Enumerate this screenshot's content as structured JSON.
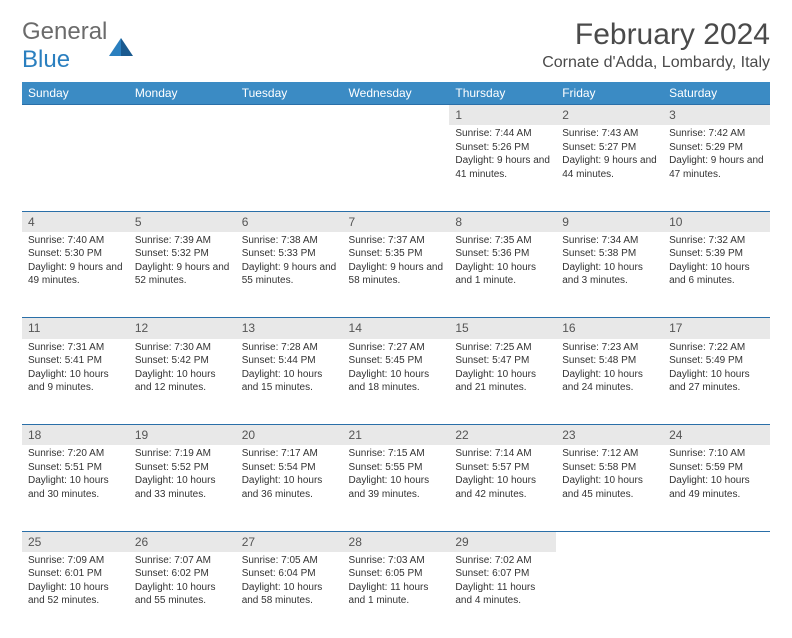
{
  "logo": {
    "word1": "General",
    "word2": "Blue"
  },
  "title": "February 2024",
  "location": "Cornate d'Adda, Lombardy, Italy",
  "colors": {
    "header_bg": "#3b8bc4",
    "header_text": "#ffffff",
    "daynum_bg": "#e8e8e8",
    "border": "#2a6fa8",
    "logo_gray": "#6b6b6b",
    "logo_blue": "#2a7fbf"
  },
  "weekdays": [
    "Sunday",
    "Monday",
    "Tuesday",
    "Wednesday",
    "Thursday",
    "Friday",
    "Saturday"
  ],
  "weeks": [
    {
      "nums": [
        "",
        "",
        "",
        "",
        "1",
        "2",
        "3"
      ],
      "cells": [
        null,
        null,
        null,
        null,
        {
          "sunrise": "7:44 AM",
          "sunset": "5:26 PM",
          "daylight": "9 hours and 41 minutes."
        },
        {
          "sunrise": "7:43 AM",
          "sunset": "5:27 PM",
          "daylight": "9 hours and 44 minutes."
        },
        {
          "sunrise": "7:42 AM",
          "sunset": "5:29 PM",
          "daylight": "9 hours and 47 minutes."
        }
      ]
    },
    {
      "nums": [
        "4",
        "5",
        "6",
        "7",
        "8",
        "9",
        "10"
      ],
      "cells": [
        {
          "sunrise": "7:40 AM",
          "sunset": "5:30 PM",
          "daylight": "9 hours and 49 minutes."
        },
        {
          "sunrise": "7:39 AM",
          "sunset": "5:32 PM",
          "daylight": "9 hours and 52 minutes."
        },
        {
          "sunrise": "7:38 AM",
          "sunset": "5:33 PM",
          "daylight": "9 hours and 55 minutes."
        },
        {
          "sunrise": "7:37 AM",
          "sunset": "5:35 PM",
          "daylight": "9 hours and 58 minutes."
        },
        {
          "sunrise": "7:35 AM",
          "sunset": "5:36 PM",
          "daylight": "10 hours and 1 minute."
        },
        {
          "sunrise": "7:34 AM",
          "sunset": "5:38 PM",
          "daylight": "10 hours and 3 minutes."
        },
        {
          "sunrise": "7:32 AM",
          "sunset": "5:39 PM",
          "daylight": "10 hours and 6 minutes."
        }
      ]
    },
    {
      "nums": [
        "11",
        "12",
        "13",
        "14",
        "15",
        "16",
        "17"
      ],
      "cells": [
        {
          "sunrise": "7:31 AM",
          "sunset": "5:41 PM",
          "daylight": "10 hours and 9 minutes."
        },
        {
          "sunrise": "7:30 AM",
          "sunset": "5:42 PM",
          "daylight": "10 hours and 12 minutes."
        },
        {
          "sunrise": "7:28 AM",
          "sunset": "5:44 PM",
          "daylight": "10 hours and 15 minutes."
        },
        {
          "sunrise": "7:27 AM",
          "sunset": "5:45 PM",
          "daylight": "10 hours and 18 minutes."
        },
        {
          "sunrise": "7:25 AM",
          "sunset": "5:47 PM",
          "daylight": "10 hours and 21 minutes."
        },
        {
          "sunrise": "7:23 AM",
          "sunset": "5:48 PM",
          "daylight": "10 hours and 24 minutes."
        },
        {
          "sunrise": "7:22 AM",
          "sunset": "5:49 PM",
          "daylight": "10 hours and 27 minutes."
        }
      ]
    },
    {
      "nums": [
        "18",
        "19",
        "20",
        "21",
        "22",
        "23",
        "24"
      ],
      "cells": [
        {
          "sunrise": "7:20 AM",
          "sunset": "5:51 PM",
          "daylight": "10 hours and 30 minutes."
        },
        {
          "sunrise": "7:19 AM",
          "sunset": "5:52 PM",
          "daylight": "10 hours and 33 minutes."
        },
        {
          "sunrise": "7:17 AM",
          "sunset": "5:54 PM",
          "daylight": "10 hours and 36 minutes."
        },
        {
          "sunrise": "7:15 AM",
          "sunset": "5:55 PM",
          "daylight": "10 hours and 39 minutes."
        },
        {
          "sunrise": "7:14 AM",
          "sunset": "5:57 PM",
          "daylight": "10 hours and 42 minutes."
        },
        {
          "sunrise": "7:12 AM",
          "sunset": "5:58 PM",
          "daylight": "10 hours and 45 minutes."
        },
        {
          "sunrise": "7:10 AM",
          "sunset": "5:59 PM",
          "daylight": "10 hours and 49 minutes."
        }
      ]
    },
    {
      "nums": [
        "25",
        "26",
        "27",
        "28",
        "29",
        "",
        ""
      ],
      "cells": [
        {
          "sunrise": "7:09 AM",
          "sunset": "6:01 PM",
          "daylight": "10 hours and 52 minutes."
        },
        {
          "sunrise": "7:07 AM",
          "sunset": "6:02 PM",
          "daylight": "10 hours and 55 minutes."
        },
        {
          "sunrise": "7:05 AM",
          "sunset": "6:04 PM",
          "daylight": "10 hours and 58 minutes."
        },
        {
          "sunrise": "7:03 AM",
          "sunset": "6:05 PM",
          "daylight": "11 hours and 1 minute."
        },
        {
          "sunrise": "7:02 AM",
          "sunset": "6:07 PM",
          "daylight": "11 hours and 4 minutes."
        },
        null,
        null
      ]
    }
  ],
  "labels": {
    "sunrise": "Sunrise:",
    "sunset": "Sunset:",
    "daylight": "Daylight:"
  }
}
